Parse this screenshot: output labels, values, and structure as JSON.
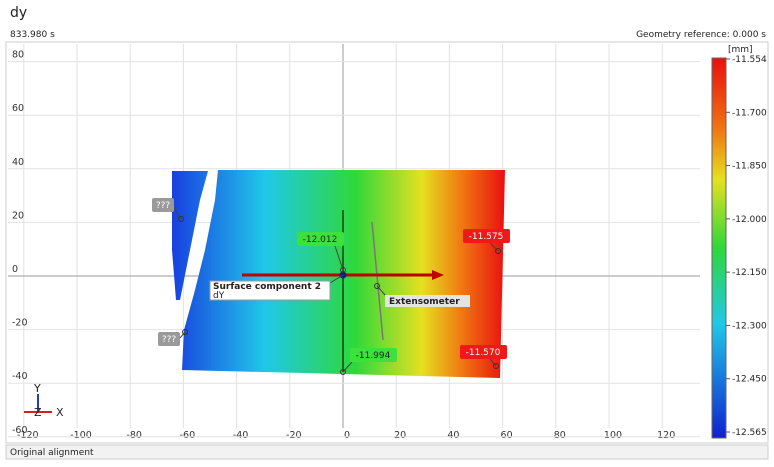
{
  "header": {
    "title": "dy",
    "time": "833.980 s",
    "geometry_reference": "Geometry reference: 0.000 s"
  },
  "plot": {
    "xticks": [
      -120,
      -100,
      -80,
      -60,
      -40,
      -20,
      0,
      20,
      40,
      60,
      80,
      100,
      120
    ],
    "yticks": [
      80,
      60,
      40,
      20,
      0,
      -20,
      -40,
      -60
    ],
    "annotations": {
      "unknown_1": "???",
      "unknown_2": "???",
      "point_1": "-12.012",
      "point_2": "-11.575",
      "point_3": "-11.994",
      "point_4": "-11.570",
      "component_name": "Surface component 2",
      "component_value": "dY",
      "extensometer": "Extensometer"
    },
    "triad": {
      "y": "Y",
      "z": "Z",
      "x": "X"
    }
  },
  "colorbar": {
    "unit": "[mm]",
    "labels": [
      "-11.554",
      "-11.700",
      "-11.850",
      "-12.000",
      "-12.150",
      "-12.300",
      "-12.450",
      "-12.565"
    ]
  },
  "footer": {
    "status": "Original alignment"
  }
}
